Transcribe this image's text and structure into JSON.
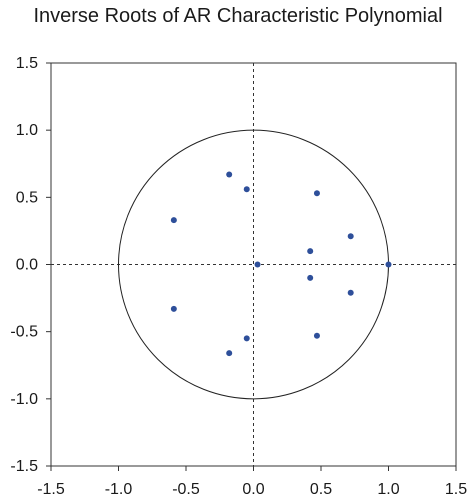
{
  "chart_data": {
    "type": "scatter",
    "title": "Inverse Roots of AR Characteristic Polynomial",
    "xlabel": "",
    "ylabel": "",
    "xlim": [
      -1.5,
      1.5
    ],
    "ylim": [
      -1.5,
      1.5
    ],
    "x_ticks": [
      "-1.5",
      "-1.0",
      "-0.5",
      "0.0",
      "0.5",
      "1.0",
      "1.5"
    ],
    "y_ticks": [
      "1.5",
      "1.0",
      "0.5",
      "0.0",
      "-0.5",
      "-1.0",
      "-1.5"
    ],
    "grid": false,
    "reference_lines": "dashed lines at x = 0 and y = 0",
    "unit_circle": {
      "center": [
        0,
        0
      ],
      "radius": 1.0
    },
    "marker_color": "#2e4f9a",
    "points": [
      {
        "x": 1.0,
        "y": 0.0
      },
      {
        "x": 0.72,
        "y": 0.21
      },
      {
        "x": 0.72,
        "y": -0.21
      },
      {
        "x": 0.47,
        "y": 0.53
      },
      {
        "x": 0.47,
        "y": -0.53
      },
      {
        "x": 0.42,
        "y": 0.1
      },
      {
        "x": 0.42,
        "y": -0.1
      },
      {
        "x": 0.03,
        "y": 0.0
      },
      {
        "x": -0.05,
        "y": 0.56
      },
      {
        "x": -0.05,
        "y": -0.55
      },
      {
        "x": -0.18,
        "y": 0.67
      },
      {
        "x": -0.18,
        "y": -0.66
      },
      {
        "x": -0.59,
        "y": 0.33
      },
      {
        "x": -0.59,
        "y": -0.33
      }
    ]
  }
}
